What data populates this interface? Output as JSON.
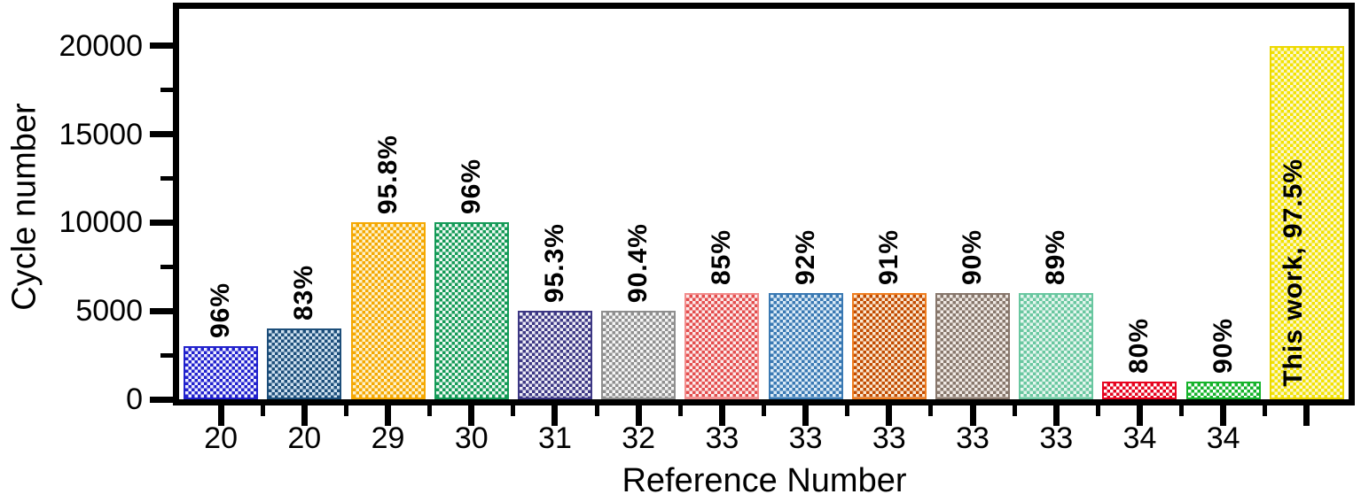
{
  "figure": {
    "background": "#ffffff",
    "frame_color": "#000000"
  },
  "chart_data": {
    "type": "bar",
    "title": "",
    "xlabel": "Reference Number",
    "ylabel": "Cycle number",
    "ylim": [
      0,
      22100
    ],
    "grid": false,
    "legend": "none",
    "yticks": [
      {
        "value": 0,
        "label": "0"
      },
      {
        "value": 5000,
        "label": "5000"
      },
      {
        "value": 10000,
        "label": "10000"
      },
      {
        "value": 15000,
        "label": "15000"
      },
      {
        "value": 20000,
        "label": "20000"
      }
    ],
    "minor_yticks": [
      2500,
      7500,
      12500,
      17500
    ],
    "categories": [
      "20",
      "20",
      "29",
      "30",
      "31",
      "32",
      "33",
      "33",
      "33",
      "33",
      "33",
      "34",
      "34",
      ""
    ],
    "bars": [
      {
        "category": "20",
        "value": 3000,
        "label": "96%",
        "label_inside": false,
        "color": "#2121cd",
        "light": "#f0f0ff",
        "border": "#2121cd"
      },
      {
        "category": "20",
        "value": 4000,
        "label": "83%",
        "label_inside": false,
        "color": "#1d4e7a",
        "light": "#cfe1f0",
        "border": "#1d4e7a"
      },
      {
        "category": "29",
        "value": 10000,
        "label": "95.8%",
        "label_inside": false,
        "color": "#f5a802",
        "light": "#fdf2cc",
        "border": "#f5a802"
      },
      {
        "category": "30",
        "value": 10000,
        "label": "96%",
        "label_inside": false,
        "color": "#149a57",
        "light": "#f0faf4",
        "border": "#149a57"
      },
      {
        "category": "31",
        "value": 5000,
        "label": "95.3%",
        "label_inside": false,
        "color": "#3d3884",
        "light": "#efeef7",
        "border": "#3d3884"
      },
      {
        "category": "32",
        "value": 5000,
        "label": "90.4%",
        "label_inside": false,
        "color": "#8f8f8f",
        "light": "#f6f6f6",
        "border": "#8f8f8f"
      },
      {
        "category": "33",
        "value": 6000,
        "label": "85%",
        "label_inside": false,
        "color": "#e34d4d",
        "light": "#fcebeb",
        "border": "#f28b8b"
      },
      {
        "category": "33",
        "value": 6000,
        "label": "92%",
        "label_inside": false,
        "color": "#3a79b3",
        "light": "#dcebf7",
        "border": "#3a79b3"
      },
      {
        "category": "33",
        "value": 6000,
        "label": "91%",
        "label_inside": false,
        "color": "#c24b00",
        "light": "#fbe9d2",
        "border": "#ef7d1f"
      },
      {
        "category": "33",
        "value": 6000,
        "label": "90%",
        "label_inside": false,
        "color": "#87776c",
        "light": "#f0eae5",
        "border": "#87776c"
      },
      {
        "category": "33",
        "value": 6000,
        "label": "89%",
        "label_inside": false,
        "color": "#69c7a0",
        "light": "#e5f6ee",
        "border": "#69c7a0"
      },
      {
        "category": "34",
        "value": 1000,
        "label": "80%",
        "label_inside": false,
        "color": "#e6041f",
        "light": "#ffffff",
        "border": "#e6041f"
      },
      {
        "category": "34",
        "value": 1000,
        "label": "90%",
        "label_inside": false,
        "color": "#16b32b",
        "light": "#ffffff",
        "border": "#16b32b"
      },
      {
        "category": "",
        "value": 20000,
        "label": "This work, 97.5%",
        "label_inside": true,
        "color": "#f2e202",
        "light": "#fbf7d0",
        "border": "#ecd802"
      }
    ]
  }
}
